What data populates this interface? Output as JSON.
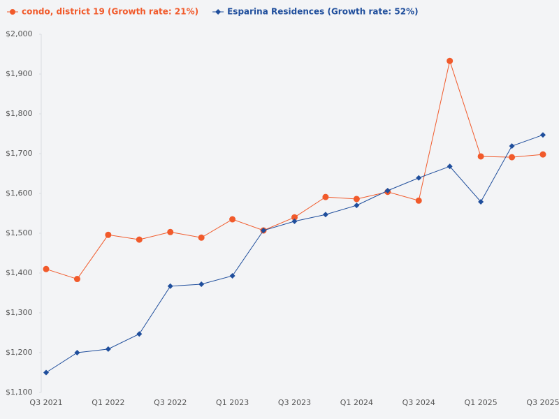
{
  "chart_data": {
    "type": "line",
    "categories": [
      "Q3 2021",
      null,
      "Q1 2022",
      null,
      "Q3 2022",
      null,
      "Q1 2023",
      null,
      "Q3 2023",
      null,
      "Q1 2024",
      null,
      "Q3 2024",
      null,
      "Q1 2025",
      null,
      "Q3 2025"
    ],
    "series": [
      {
        "name": "condo, district 19 (Growth rate: 21%)",
        "color": "#f15a2b",
        "marker": "circle",
        "values": [
          1410,
          1385,
          1496,
          1484,
          1503,
          1489,
          1535,
          1507,
          1540,
          1591,
          1586,
          1604,
          1582,
          1933,
          1693,
          1691,
          1698
        ]
      },
      {
        "name": "Esparina Residences (Growth rate: 52%)",
        "color": "#1f4e9c",
        "marker": "diamond",
        "values": [
          1150,
          1200,
          1209,
          1247,
          1367,
          1372,
          1393,
          1507,
          1530,
          1547,
          1570,
          1607,
          1639,
          1668,
          1579,
          1719,
          1747
        ]
      }
    ],
    "ylim": [
      1100,
      2000
    ],
    "yticks": [
      {
        "value": 1100,
        "label": "$1,100"
      },
      {
        "value": 1200,
        "label": "$1,200"
      },
      {
        "value": 1300,
        "label": "$1,300"
      },
      {
        "value": 1400,
        "label": "$1,400"
      },
      {
        "value": 1500,
        "label": "$1,500"
      },
      {
        "value": 1600,
        "label": "$1,600"
      },
      {
        "value": 1700,
        "label": "$1,700"
      },
      {
        "value": 1800,
        "label": "$1,800"
      },
      {
        "value": 1900,
        "label": "$1,900"
      },
      {
        "value": 2000,
        "label": "$2,000"
      }
    ],
    "grid": false,
    "legend": "top-left"
  }
}
